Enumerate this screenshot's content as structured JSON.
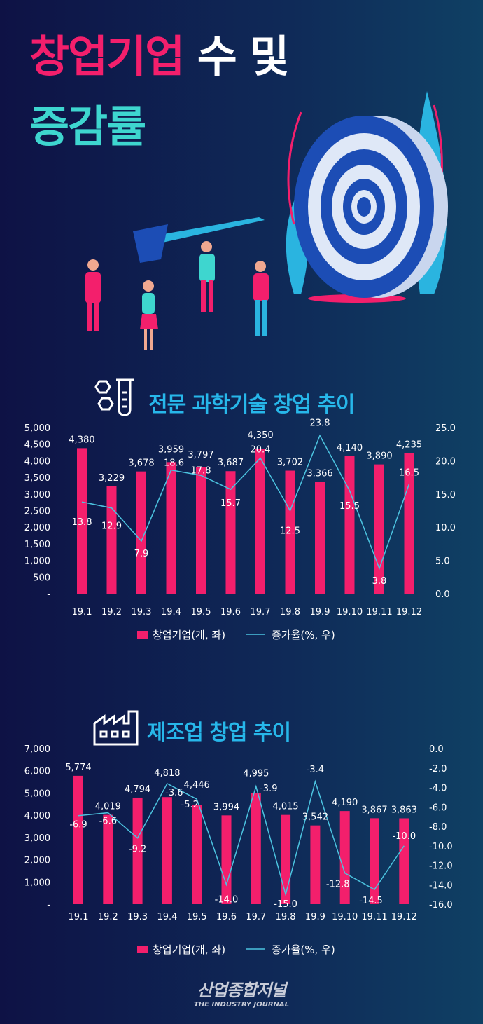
{
  "header": {
    "title_pink": "창업기업",
    "title_white": "수 및",
    "title_line2": "증감률"
  },
  "colors": {
    "bar": "#f31f6c",
    "line": "#4cc4e0",
    "title_pink": "#f31f6c",
    "title_cyan": "#3ed6cf",
    "section": "#27b7ea"
  },
  "sections": [
    {
      "title": "전문 과학기술 창업 추이",
      "icon": "lab-flask-icon"
    },
    {
      "title": "제조업 창업 추이",
      "icon": "factory-icon"
    }
  ],
  "chart_data": [
    {
      "type": "bar+line",
      "categories": [
        "19.1",
        "19.2",
        "19.3",
        "19.4",
        "19.5",
        "19.6",
        "19.7",
        "19.8",
        "19.9",
        "19.10",
        "19.11",
        "19.12"
      ],
      "series": [
        {
          "name": "창업기업(개, 좌)",
          "type": "bar",
          "axis": "left",
          "values": [
            4380,
            3229,
            3678,
            3959,
            3797,
            3687,
            4350,
            3702,
            3366,
            4140,
            3890,
            4235
          ],
          "labels": [
            "4,380",
            "3,229",
            "3,678",
            "3,959",
            "3,797",
            "3,687",
            "4,350",
            "3,702",
            "3,366",
            "4,140",
            "3,890",
            "4,235"
          ]
        },
        {
          "name": "증가율(%, 우)",
          "type": "line",
          "axis": "right",
          "values": [
            13.8,
            12.9,
            7.9,
            18.6,
            17.8,
            15.7,
            20.4,
            12.5,
            23.8,
            15.5,
            3.8,
            16.5
          ],
          "labels": [
            "13.8",
            "12.9",
            "7.9",
            "18.6",
            "17.8",
            "15.7",
            "20.4",
            "12.5",
            "23.8",
            "15.5",
            "3.8",
            "16.5"
          ]
        }
      ],
      "ylim_left": [
        0,
        5000
      ],
      "yticks_left": [
        "-",
        "500",
        "1,000",
        "1,500",
        "2,000",
        "2,500",
        "3,000",
        "3,500",
        "4,000",
        "4,500",
        "5,000"
      ],
      "ylim_right": [
        0,
        25
      ],
      "yticks_right": [
        "0.0",
        "5.0",
        "10.0",
        "15.0",
        "20.0",
        "25.0"
      ],
      "legend": "bottom",
      "grid": false
    },
    {
      "type": "bar+line",
      "categories": [
        "19.1",
        "19.2",
        "19.3",
        "19.4",
        "19.5",
        "19.6",
        "19.7",
        "19.8",
        "19.9",
        "19.10",
        "19.11",
        "19.12"
      ],
      "series": [
        {
          "name": "창업기업(개, 좌)",
          "type": "bar",
          "axis": "left",
          "values": [
            5774,
            4019,
            4794,
            4818,
            4446,
            3994,
            4995,
            4015,
            3542,
            4190,
            3867,
            3863
          ],
          "labels": [
            "5,774",
            "4,019",
            "4,794",
            "4,818",
            "4,446",
            "3,994",
            "4,995",
            "4,015",
            "3,542",
            "4,190",
            "3,867",
            "3,863"
          ]
        },
        {
          "name": "증가율(%, 우)",
          "type": "line",
          "axis": "right",
          "values": [
            -6.9,
            -6.6,
            -9.2,
            -3.6,
            -5.2,
            -14.0,
            -3.9,
            -15.0,
            -3.4,
            -12.8,
            -14.5,
            -10.0
          ],
          "labels": [
            "-6.9",
            "-6.6",
            "-9.2",
            "-3.6",
            "-5.2",
            "-14.0",
            "-3.9",
            "-15.0",
            "-3.4",
            "-12.8",
            "-14.5",
            "-10.0"
          ]
        }
      ],
      "ylim_left": [
        0,
        7000
      ],
      "yticks_left": [
        "-",
        "1,000",
        "2,000",
        "3,000",
        "4,000",
        "5,000",
        "6,000",
        "7,000"
      ],
      "ylim_right": [
        -16,
        0
      ],
      "yticks_right": [
        "-16.0",
        "-14.0",
        "-12.0",
        "-10.0",
        "-8.0",
        "-6.0",
        "-4.0",
        "-2.0",
        "0.0"
      ],
      "legend": "bottom",
      "grid": false
    }
  ],
  "footer": {
    "logo_korean": "산업종합저널",
    "logo_english": "THE INDUSTRY JOURNAL"
  }
}
